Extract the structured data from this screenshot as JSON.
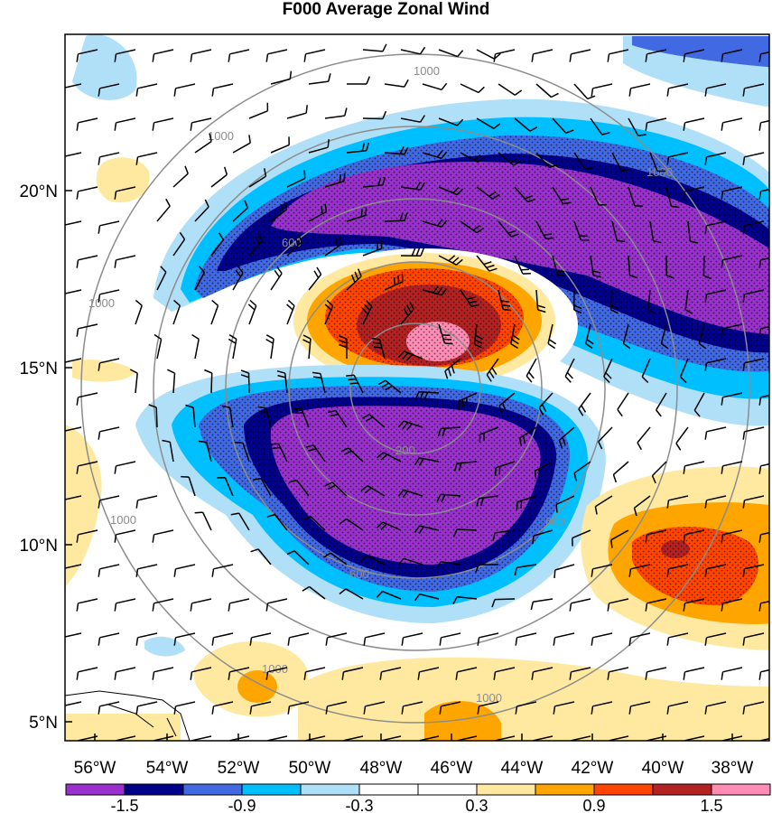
{
  "title": "F000 Average Zonal Wind",
  "lat_labels": [
    "20°N",
    "15°N",
    "10°N",
    "5°N"
  ],
  "lon_labels": [
    "56°W",
    "54°W",
    "52°W",
    "50°W",
    "48°W",
    "46°W",
    "44°W",
    "42°W",
    "40°W",
    "38°W"
  ],
  "colorbar": {
    "labels": [
      "-1.5",
      "-0.9",
      "-0.3",
      "0.3",
      "0.9",
      "1.5"
    ],
    "colors": [
      "#9932cc",
      "#00008b",
      "#4169e1",
      "#00bfff",
      "#b0e0f8",
      "#ffffff",
      "#ffffff",
      "#ffe9a0",
      "#ffa500",
      "#ff4500",
      "#b22222",
      "#ff8cb4"
    ]
  },
  "range_rings": {
    "labels": [
      "200",
      "600",
      "1000"
    ],
    "color": "#8c8c8c"
  }
}
